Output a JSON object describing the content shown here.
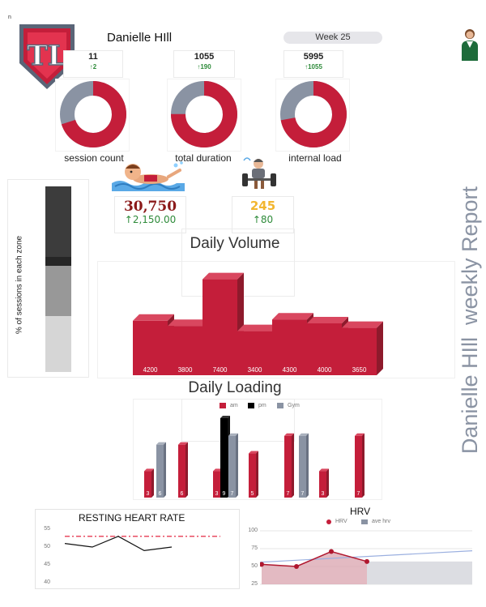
{
  "corner_mark": "n",
  "athlete_name": "Danielle HIll",
  "week_label": "Week 25",
  "vertical_title": "Danielle HIll  weekly Report",
  "logo_text": "TL",
  "kpis": [
    {
      "value": "11",
      "delta": "2",
      "label": "session count",
      "fill_fraction": 0.7
    },
    {
      "value": "1055",
      "delta": "190",
      "label": "total duration",
      "fill_fraction": 0.75
    },
    {
      "value": "5995",
      "delta": "1055",
      "label": "internal load",
      "fill_fraction": 0.72
    }
  ],
  "colors": {
    "accent": "#c41e3a",
    "grey": "#8a93a3",
    "delta_green": "#2e8b3a",
    "volume_gold": "#f2b630",
    "volume_dark": "#8b1a1a"
  },
  "zone_axis_label": "% of sessions in each zone",
  "zone_fractions": [
    0.38,
    0.05,
    0.27,
    0.3
  ],
  "volume_card": {
    "value": "30,750",
    "delta": "2,150.00"
  },
  "intensity_card": {
    "value": "245",
    "delta": "80"
  },
  "icons": {
    "arrow_up": "arrow-up-icon",
    "swimmer": "swimmer-icon",
    "weightlifter": "weightlifter-icon",
    "avatar": "athlete-avatar"
  },
  "chart_data": [
    {
      "type": "bar",
      "title": "Daily Volume",
      "values": [
        4200,
        3800,
        7400,
        3400,
        4300,
        4000,
        3650
      ],
      "ylim": [
        0,
        8000
      ]
    },
    {
      "type": "bar",
      "title": "Daily Loading",
      "series_names": [
        "am",
        "pm",
        "Gym"
      ],
      "bars": [
        {
          "series": "am",
          "value": 3
        },
        {
          "series": "Gym",
          "value": 6
        },
        {
          "series": "am",
          "value": 6
        },
        {
          "series": "am",
          "value": 3
        },
        {
          "series": "pm",
          "value": 9
        },
        {
          "series": "Gym",
          "value": 7
        },
        {
          "series": "am",
          "value": 5
        },
        {
          "series": "am",
          "value": 7
        },
        {
          "series": "Gym",
          "value": 7
        },
        {
          "series": "am",
          "value": 3
        },
        {
          "series": "am",
          "value": 7
        }
      ],
      "ylim": [
        0,
        9
      ]
    },
    {
      "type": "line",
      "title": "RESTING HEART RATE",
      "yticks": [
        "55",
        "50",
        "45",
        "40"
      ],
      "ylim": [
        40,
        55
      ],
      "values": [
        51,
        50,
        53,
        49,
        50
      ],
      "reference": 53
    },
    {
      "type": "line",
      "title": "HRV",
      "legend": [
        "HRV",
        "ave hrv"
      ],
      "yticks": [
        "100",
        "75",
        "50",
        "25"
      ],
      "ylim": [
        25,
        100
      ],
      "values": [
        53,
        50,
        71,
        57
      ],
      "reference_line": [
        56,
        72
      ]
    }
  ]
}
